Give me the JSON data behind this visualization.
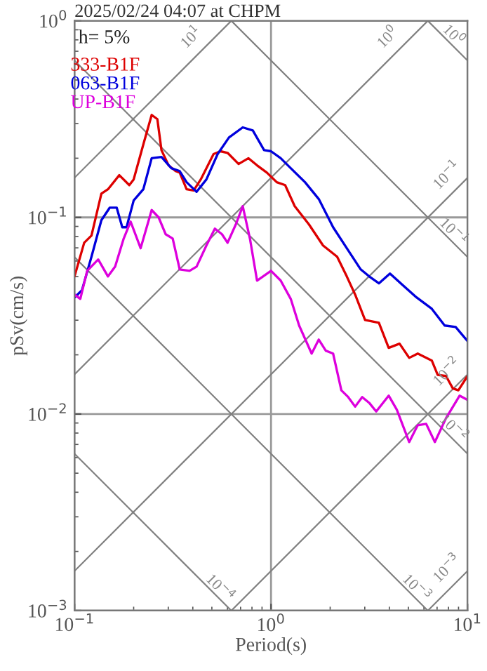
{
  "chart_data": {
    "type": "line",
    "title": "2025/02/24 04:07 at CHPM",
    "xlabel": "Period(s)",
    "ylabel": "pSv(cm/s)",
    "log": "xy",
    "grid": true,
    "legend": "top left",
    "xlim": [
      0.1,
      10
    ],
    "ylim": [
      0.001,
      1
    ],
    "xticks": [
      {
        "value": 0.1,
        "label": "10$^{−1}$"
      },
      {
        "value": 1,
        "label": "10$^{0}$"
      },
      {
        "value": 10,
        "label": "10$^{1}$"
      }
    ],
    "yticks": [
      {
        "value": 0.001,
        "label": "10$^{−3}$"
      },
      {
        "value": 0.01,
        "label": "10$^{−2}$"
      },
      {
        "value": 0.1,
        "label": "10$^{−1}$"
      },
      {
        "value": 1,
        "label": "10$^{0}$"
      }
    ],
    "annotations": [
      "h= 5%",
      {
        "text": "10$^{1}$",
        "x": 0.45,
        "y": 0.72
      },
      {
        "text": "10$^{0}$",
        "x": 4.5,
        "y": 0.72
      },
      {
        "text": "10$^{−1}$",
        "x": 9,
        "y": 0.143
      },
      {
        "text": "10$^{−2}$",
        "x": 9,
        "y": 0.0143
      },
      {
        "text": "10$^{−3}$",
        "x": 9,
        "y": 0.00143
      },
      {
        "text": "10$^{0}$",
        "x": 8.5,
        "y": 0.739
      },
      {
        "text": "10$^{−1}$",
        "x": 8.5,
        "y": 0.0739
      },
      {
        "text": "10$^{−2}$",
        "x": 8.5,
        "y": 0.00739
      },
      {
        "text": "10$^{−3}$",
        "x": 5.5,
        "y": 0.00114
      },
      {
        "text": "10$^{−4}$",
        "x": 0.55,
        "y": 0.00114
      }
    ],
    "series": [
      {
        "color": "#808080",
        "x": [
          0.1,
          0.628
        ],
        "values": [
          0.159,
          1
        ]
      },
      {
        "color": "#808080",
        "x": [
          0.1,
          6.28
        ],
        "values": [
          0.0159,
          1
        ]
      },
      {
        "color": "#808080",
        "x": [
          0.1,
          10
        ],
        "values": [
          0.00159,
          0.159
        ]
      },
      {
        "color": "#808080",
        "x": [
          0.628,
          10
        ],
        "values": [
          0.001,
          0.0159
        ]
      },
      {
        "color": "#808080",
        "x": [
          6.28,
          10
        ],
        "values": [
          0.001,
          0.00159
        ]
      },
      {
        "color": "#808080",
        "x": [
          6.28,
          10
        ],
        "values": [
          1,
          0.628
        ]
      },
      {
        "color": "#808080",
        "x": [
          0.628,
          10
        ],
        "values": [
          1,
          0.0628
        ]
      },
      {
        "color": "#808080",
        "x": [
          0.1,
          10
        ],
        "values": [
          0.628,
          0.00628
        ]
      },
      {
        "color": "#808080",
        "x": [
          0.1,
          6.28
        ],
        "values": [
          0.0628,
          0.001
        ]
      },
      {
        "color": "#808080",
        "x": [
          0.1,
          0.628
        ],
        "values": [
          0.00628,
          0.001
        ]
      },
      {
        "name": "333-B1F",
        "color": "#dd0000",
        "x": [
          0.1,
          0.112,
          0.122,
          0.137,
          0.148,
          0.169,
          0.19,
          0.2,
          0.224,
          0.247,
          0.264,
          0.277,
          0.301,
          0.327,
          0.343,
          0.372,
          0.404,
          0.439,
          0.51,
          0.553,
          0.601,
          0.684,
          0.768,
          0.849,
          0.952,
          1.07,
          1.18,
          1.32,
          1.56,
          1.84,
          2.17,
          2.43,
          2.68,
          3.01,
          3.54,
          3.97,
          4.51,
          5.05,
          5.58,
          6.58,
          7.05,
          7.77,
          8.42,
          8.98,
          10
        ],
        "values": [
          0.0501,
          0.0743,
          0.0808,
          0.132,
          0.139,
          0.164,
          0.146,
          0.156,
          0.235,
          0.332,
          0.316,
          0.22,
          0.184,
          0.172,
          0.169,
          0.139,
          0.137,
          0.156,
          0.21,
          0.217,
          0.213,
          0.187,
          0.2,
          0.184,
          0.169,
          0.151,
          0.146,
          0.114,
          0.0921,
          0.072,
          0.0631,
          0.0501,
          0.0405,
          0.0301,
          0.0291,
          0.0217,
          0.0228,
          0.0193,
          0.0203,
          0.0187,
          0.0158,
          0.0156,
          0.0135,
          0.0132,
          0.0156
        ]
      },
      {
        "name": "063-B1F",
        "color": "#0000dd",
        "x": [
          0.1,
          0.109,
          0.122,
          0.137,
          0.151,
          0.164,
          0.175,
          0.184,
          0.2,
          0.224,
          0.247,
          0.277,
          0.311,
          0.343,
          0.372,
          0.418,
          0.469,
          0.535,
          0.611,
          0.718,
          0.808,
          0.922,
          1.0,
          1.12,
          1.26,
          1.49,
          1.75,
          2.07,
          2.43,
          2.86,
          3.16,
          3.54,
          4.03,
          4.66,
          5.5,
          6.58,
          7.65,
          8.7,
          10
        ],
        "values": [
          0.0392,
          0.0425,
          0.0631,
          0.0968,
          0.112,
          0.112,
          0.0891,
          0.0891,
          0.122,
          0.139,
          0.2,
          0.203,
          0.178,
          0.172,
          0.151,
          0.135,
          0.156,
          0.21,
          0.255,
          0.287,
          0.277,
          0.22,
          0.217,
          0.2,
          0.178,
          0.151,
          0.124,
          0.0891,
          0.0697,
          0.0544,
          0.0501,
          0.0462,
          0.0518,
          0.0454,
          0.0392,
          0.0343,
          0.0282,
          0.0277,
          0.0235
        ]
      },
      {
        "name": "UP-B1F",
        "color": "#dd00dd",
        "x": [
          0.1,
          0.107,
          0.116,
          0.132,
          0.148,
          0.161,
          0.178,
          0.193,
          0.217,
          0.247,
          0.268,
          0.291,
          0.316,
          0.343,
          0.385,
          0.418,
          0.469,
          0.518,
          0.563,
          0.601,
          0.662,
          0.718,
          0.781,
          0.849,
          1.0,
          1.12,
          1.26,
          1.39,
          1.61,
          1.75,
          1.9,
          2.07,
          2.28,
          2.47,
          2.68,
          2.91,
          3.16,
          3.43,
          3.97,
          4.37,
          5.05,
          5.58,
          6.16,
          6.82,
          7.77,
          9.12,
          10
        ],
        "values": [
          0.0405,
          0.0385,
          0.0535,
          0.0611,
          0.0501,
          0.0562,
          0.0781,
          0.0952,
          0.0697,
          0.109,
          0.1,
          0.0821,
          0.0781,
          0.0544,
          0.0535,
          0.0562,
          0.072,
          0.0877,
          0.0821,
          0.0743,
          0.0921,
          0.114,
          0.0781,
          0.0477,
          0.0535,
          0.0477,
          0.0385,
          0.0282,
          0.0203,
          0.0239,
          0.021,
          0.0203,
          0.0132,
          0.0122,
          0.0109,
          0.0122,
          0.0114,
          0.0103,
          0.0124,
          0.0105,
          0.0072,
          0.00877,
          0.00891,
          0.0072,
          0.00952,
          0.0124,
          0.0118
        ]
      }
    ]
  }
}
